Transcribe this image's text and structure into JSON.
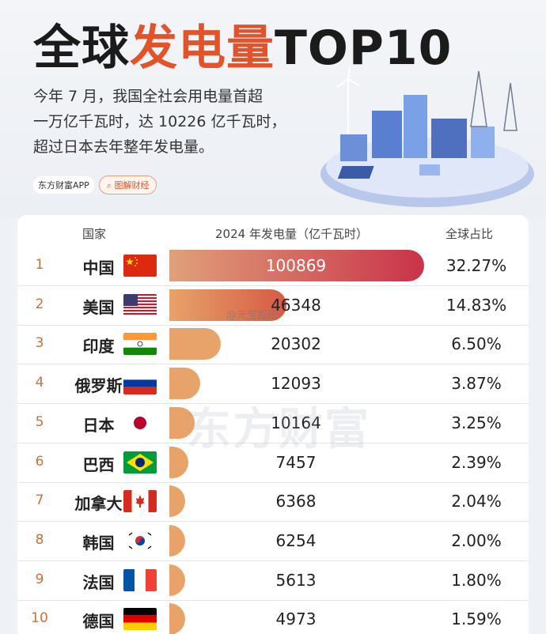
{
  "header": {
    "title_part1": "全球",
    "title_highlight": "发电量",
    "title_part2": "TOP10",
    "intro_lines": [
      "今年 7 月，我国全社会用电量首超",
      "一万亿千瓦时，达 10226 亿千瓦时，",
      "超过日本去年整年发电量。"
    ],
    "app_label": "东方财富APP",
    "tag_label": "图解财经"
  },
  "table": {
    "col_country": "国家",
    "col_value": "2024 年发电量（亿千瓦时）",
    "col_share": "全球占比"
  },
  "watermarks": {
    "main": "东方财富",
    "weibo": "@元宝投研"
  },
  "colors": {
    "accent": "#e2532a",
    "bar_top_start": "#e0a07a",
    "bar_top_end": "#c9334a",
    "bar_default": "#e7a36a"
  },
  "chart_data": {
    "type": "bar",
    "title": "全球发电量TOP10",
    "value_axis_label": "2024 年发电量（亿千瓦时）",
    "categories": [
      "中国",
      "美国",
      "印度",
      "俄罗斯",
      "日本",
      "巴西",
      "加拿大",
      "韩国",
      "法国",
      "德国"
    ],
    "ranks": [
      "1",
      "2",
      "3",
      "4",
      "5",
      "6",
      "7",
      "8",
      "9",
      "10"
    ],
    "flag_icons": [
      "flag-china",
      "flag-usa",
      "flag-india",
      "flag-russia",
      "flag-japan",
      "flag-brazil",
      "flag-canada",
      "flag-korea",
      "flag-france",
      "flag-germany"
    ],
    "values": [
      100869,
      46348,
      20302,
      12093,
      10164,
      7457,
      6368,
      6254,
      5613,
      4973
    ],
    "value_labels": [
      "100869",
      "46348",
      "20302",
      "12093",
      "10164",
      "7457",
      "6368",
      "6254",
      "5613",
      "4973"
    ],
    "shares": [
      "32.27%",
      "14.83%",
      "6.50%",
      "3.87%",
      "3.25%",
      "2.39%",
      "2.04%",
      "2.00%",
      "1.80%",
      "1.59%"
    ]
  }
}
